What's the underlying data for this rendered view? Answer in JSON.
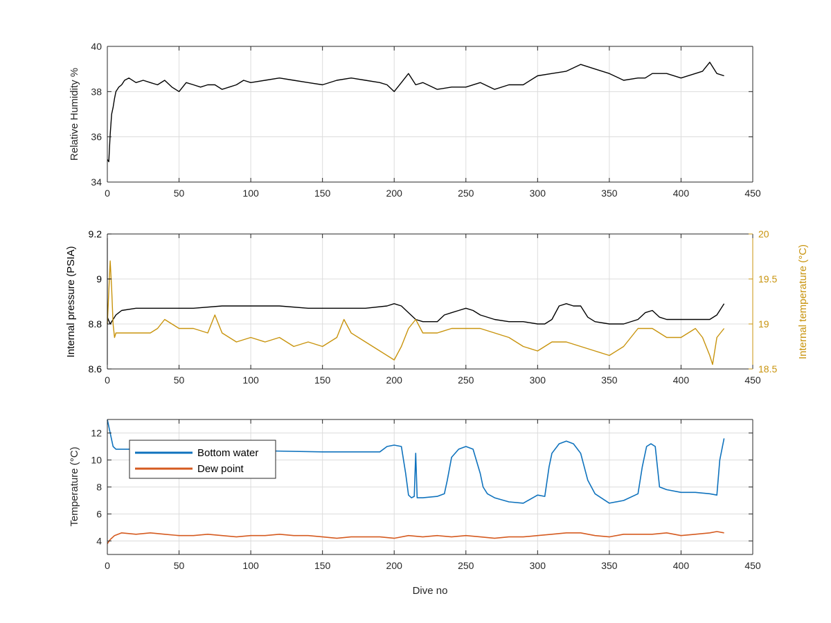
{
  "colors": {
    "axis": "#262626",
    "grid": "#dcdcdc",
    "black_line": "#000000",
    "internal_temp": "#c8930c",
    "bottom_water": "#0e72bd",
    "dew_point": "#d55a1f"
  },
  "chart_data": [
    {
      "type": "line",
      "xlabel": "",
      "ylabel": "Relative Humidity %",
      "xlim": [
        0,
        450
      ],
      "ylim": [
        34,
        40
      ],
      "xticks": [
        0,
        50,
        100,
        150,
        200,
        250,
        300,
        350,
        400,
        450
      ],
      "yticks": [
        34,
        36,
        38,
        40
      ],
      "grid": true,
      "series": [
        {
          "x": [
            0,
            1,
            2,
            3,
            4,
            5,
            6,
            8,
            10,
            12,
            15,
            20,
            25,
            30,
            35,
            40,
            45,
            50,
            55,
            60,
            65,
            70,
            75,
            80,
            85,
            90,
            95,
            100,
            110,
            120,
            130,
            140,
            150,
            160,
            170,
            180,
            190,
            195,
            200,
            205,
            210,
            215,
            220,
            230,
            240,
            250,
            260,
            270,
            280,
            290,
            300,
            310,
            320,
            330,
            340,
            350,
            360,
            370,
            375,
            380,
            390,
            400,
            410,
            415,
            420,
            425,
            430
          ],
          "y": [
            35.0,
            34.9,
            36.1,
            37.0,
            37.3,
            37.7,
            38.0,
            38.2,
            38.3,
            38.5,
            38.6,
            38.4,
            38.5,
            38.4,
            38.3,
            38.5,
            38.2,
            38.0,
            38.4,
            38.3,
            38.2,
            38.3,
            38.3,
            38.1,
            38.2,
            38.3,
            38.5,
            38.4,
            38.5,
            38.6,
            38.5,
            38.4,
            38.3,
            38.5,
            38.6,
            38.5,
            38.4,
            38.3,
            38.0,
            38.4,
            38.8,
            38.3,
            38.4,
            38.1,
            38.2,
            38.2,
            38.4,
            38.1,
            38.3,
            38.3,
            38.7,
            38.8,
            38.9,
            39.2,
            39.0,
            38.8,
            38.5,
            38.6,
            38.6,
            38.8,
            38.8,
            38.6,
            38.8,
            38.9,
            39.3,
            38.8,
            38.7
          ],
          "color": "#000000"
        }
      ]
    },
    {
      "type": "line",
      "xlabel": "",
      "ylabel": "Internal pressure (PSIA)",
      "y2label": "Internal temperature (°C)",
      "xlim": [
        0,
        450
      ],
      "ylim": [
        8.6,
        9.2
      ],
      "y2lim": [
        18.5,
        20
      ],
      "xticks": [
        0,
        50,
        100,
        150,
        200,
        250,
        300,
        350,
        400,
        450
      ],
      "yticks": [
        8.6,
        8.8,
        9,
        9.2
      ],
      "y2ticks": [
        18.5,
        19,
        19.5,
        20
      ],
      "grid": true,
      "series": [
        {
          "axis": "left",
          "x": [
            0,
            2,
            4,
            6,
            8,
            10,
            20,
            40,
            60,
            80,
            100,
            120,
            140,
            160,
            180,
            195,
            200,
            205,
            210,
            215,
            220,
            230,
            235,
            240,
            245,
            250,
            255,
            260,
            270,
            280,
            290,
            300,
            305,
            310,
            315,
            320,
            325,
            330,
            335,
            340,
            350,
            360,
            370,
            375,
            380,
            385,
            390,
            400,
            410,
            420,
            425,
            430
          ],
          "y": [
            8.83,
            8.8,
            8.82,
            8.84,
            8.85,
            8.86,
            8.87,
            8.87,
            8.87,
            8.88,
            8.88,
            8.88,
            8.87,
            8.87,
            8.87,
            8.88,
            8.89,
            8.88,
            8.85,
            8.82,
            8.81,
            8.81,
            8.84,
            8.85,
            8.86,
            8.87,
            8.86,
            8.84,
            8.82,
            8.81,
            8.81,
            8.8,
            8.8,
            8.82,
            8.88,
            8.89,
            8.88,
            8.88,
            8.83,
            8.81,
            8.8,
            8.8,
            8.82,
            8.85,
            8.86,
            8.83,
            8.82,
            8.82,
            8.82,
            8.82,
            8.84,
            8.89
          ],
          "color": "#000000"
        },
        {
          "axis": "right",
          "x": [
            0,
            2,
            3,
            4,
            5,
            6,
            8,
            10,
            20,
            30,
            35,
            40,
            50,
            60,
            70,
            75,
            80,
            90,
            100,
            110,
            120,
            130,
            140,
            150,
            160,
            165,
            170,
            180,
            190,
            200,
            205,
            210,
            215,
            220,
            230,
            240,
            250,
            260,
            270,
            280,
            290,
            300,
            310,
            320,
            330,
            340,
            350,
            360,
            370,
            380,
            390,
            400,
            410,
            415,
            420,
            422,
            425,
            430
          ],
          "y": [
            19.0,
            19.7,
            19.4,
            19.0,
            18.85,
            18.9,
            18.9,
            18.9,
            18.9,
            18.9,
            18.95,
            19.05,
            18.95,
            18.95,
            18.9,
            19.1,
            18.9,
            18.8,
            18.85,
            18.8,
            18.85,
            18.75,
            18.8,
            18.75,
            18.85,
            19.05,
            18.9,
            18.8,
            18.7,
            18.6,
            18.75,
            18.95,
            19.05,
            18.9,
            18.9,
            18.95,
            18.95,
            18.95,
            18.9,
            18.85,
            18.75,
            18.7,
            18.8,
            18.8,
            18.75,
            18.7,
            18.65,
            18.75,
            18.95,
            18.95,
            18.85,
            18.85,
            18.95,
            18.85,
            18.65,
            18.55,
            18.85,
            18.95
          ],
          "color": "#c8930c"
        }
      ]
    },
    {
      "type": "line",
      "xlabel": "Dive no",
      "ylabel": "Temperature (°C)",
      "xlim": [
        0,
        450
      ],
      "ylim": [
        3,
        13
      ],
      "xticks": [
        0,
        50,
        100,
        150,
        200,
        250,
        300,
        350,
        400,
        450
      ],
      "yticks": [
        4,
        6,
        8,
        10,
        12
      ],
      "grid": true,
      "legend": "top-left",
      "series": [
        {
          "name": "Bottom water",
          "x": [
            0,
            2,
            4,
            6,
            10,
            30,
            60,
            100,
            150,
            190,
            195,
            200,
            205,
            208,
            210,
            212,
            214,
            215,
            216,
            218,
            220,
            230,
            235,
            237,
            240,
            245,
            250,
            255,
            260,
            262,
            265,
            270,
            280,
            290,
            300,
            305,
            308,
            310,
            315,
            320,
            325,
            330,
            335,
            340,
            350,
            360,
            370,
            373,
            376,
            379,
            382,
            385,
            390,
            400,
            410,
            420,
            425,
            427,
            430
          ],
          "y": [
            13.0,
            12.0,
            11.0,
            10.8,
            10.8,
            10.8,
            10.75,
            10.7,
            10.6,
            10.6,
            11.0,
            11.1,
            11.0,
            9.0,
            7.4,
            7.2,
            7.3,
            10.5,
            7.2,
            7.2,
            7.2,
            7.3,
            7.5,
            8.5,
            10.2,
            10.8,
            11.0,
            10.8,
            9.0,
            8.0,
            7.5,
            7.2,
            6.9,
            6.8,
            7.4,
            7.3,
            9.5,
            10.5,
            11.2,
            11.4,
            11.2,
            10.5,
            8.5,
            7.5,
            6.8,
            7.0,
            7.5,
            9.5,
            11.0,
            11.2,
            11.0,
            8.0,
            7.8,
            7.6,
            7.6,
            7.5,
            7.4,
            10.0,
            11.6
          ],
          "color": "#0e72bd"
        },
        {
          "name": "Dew point",
          "x": [
            0,
            2,
            5,
            10,
            20,
            30,
            40,
            50,
            60,
            70,
            80,
            90,
            100,
            110,
            120,
            130,
            140,
            150,
            160,
            170,
            180,
            190,
            200,
            210,
            220,
            230,
            240,
            250,
            260,
            270,
            280,
            290,
            300,
            310,
            320,
            330,
            340,
            350,
            360,
            370,
            380,
            390,
            400,
            410,
            420,
            425,
            430
          ],
          "y": [
            3.8,
            4.1,
            4.4,
            4.6,
            4.5,
            4.6,
            4.5,
            4.4,
            4.4,
            4.5,
            4.4,
            4.3,
            4.4,
            4.4,
            4.5,
            4.4,
            4.4,
            4.3,
            4.2,
            4.3,
            4.3,
            4.3,
            4.2,
            4.4,
            4.3,
            4.4,
            4.3,
            4.4,
            4.3,
            4.2,
            4.3,
            4.3,
            4.4,
            4.5,
            4.6,
            4.6,
            4.4,
            4.3,
            4.5,
            4.5,
            4.5,
            4.6,
            4.4,
            4.5,
            4.6,
            4.7,
            4.6
          ],
          "color": "#d55a1f"
        }
      ]
    }
  ]
}
